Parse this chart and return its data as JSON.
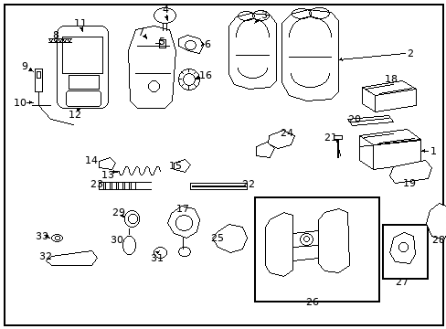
{
  "background_color": "#ffffff",
  "border_color": "#000000",
  "figsize": [
    4.89,
    3.6
  ],
  "dpi": 100,
  "image_b64": ""
}
